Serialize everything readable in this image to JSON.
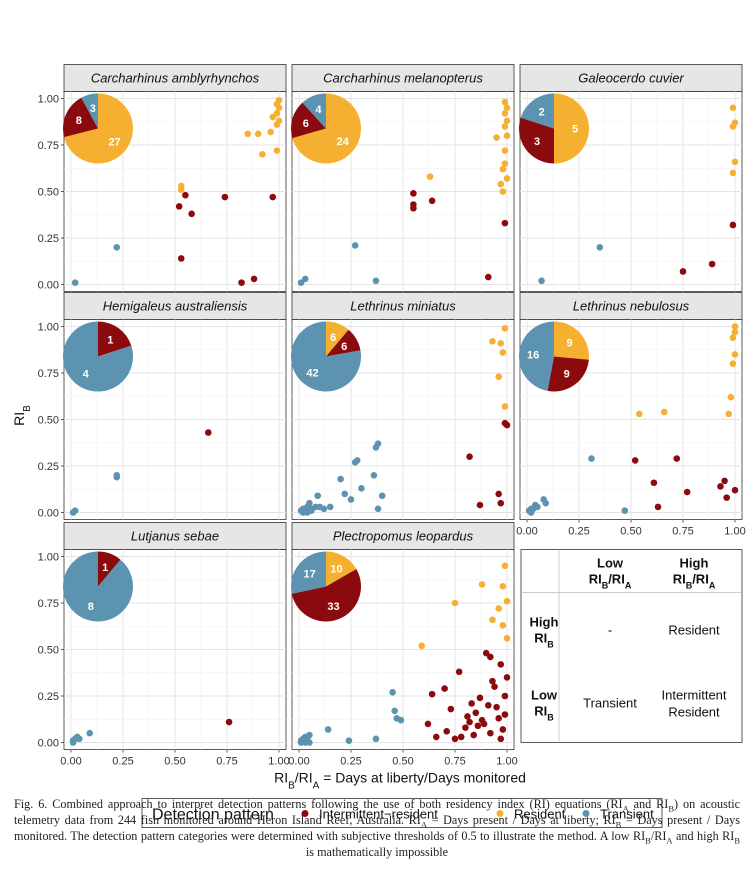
{
  "chart_data": {
    "type": "scatter",
    "layout": "facet-grid",
    "ylabel": "RI_B",
    "xlabel": "RI_B/RI_A = Days at liberty/Days monitored",
    "xlim": [
      0,
      1
    ],
    "ylim": [
      0,
      1
    ],
    "x_ticks": [
      "0.00",
      "0.25",
      "0.50",
      "0.75",
      "1.00"
    ],
    "y_ticks": [
      "0.00",
      "0.25",
      "0.50",
      "0.75",
      "1.00"
    ],
    "legend": {
      "title": "Detection pattern",
      "position": "bottom",
      "entries": [
        {
          "key": "intermittent",
          "label": "Intermittent−resident",
          "color": "#8b0a0e"
        },
        {
          "key": "resident",
          "label": "Resident",
          "color": "#f5b031"
        },
        {
          "key": "transient",
          "label": "Transient",
          "color": "#5b93b0"
        }
      ]
    },
    "panels": [
      {
        "species": "Carcharhinus amblyrhynchos",
        "pie": [
          {
            "key": "resident",
            "count": "27"
          },
          {
            "key": "intermittent",
            "count": "8"
          },
          {
            "key": "transient",
            "count": "3"
          }
        ],
        "points": {
          "resident": [
            [
              0.53,
              0.53
            ],
            [
              0.53,
              0.51
            ],
            [
              0.9,
              0.81
            ],
            [
              0.96,
              0.82
            ],
            [
              0.99,
              0.72
            ],
            [
              0.92,
              0.7
            ],
            [
              0.97,
              0.9
            ],
            [
              1.0,
              0.88
            ],
            [
              0.99,
              0.92
            ],
            [
              1.0,
              0.95
            ],
            [
              0.99,
              0.97
            ],
            [
              1.0,
              0.99
            ],
            [
              0.99,
              0.86
            ],
            [
              0.85,
              0.81
            ]
          ],
          "intermittent": [
            [
              0.52,
              0.42
            ],
            [
              0.55,
              0.48
            ],
            [
              0.58,
              0.38
            ],
            [
              0.74,
              0.47
            ],
            [
              0.97,
              0.47
            ],
            [
              0.53,
              0.14
            ],
            [
              0.82,
              0.01
            ],
            [
              0.88,
              0.03
            ]
          ],
          "transient": [
            [
              0.22,
              0.2
            ],
            [
              0.02,
              0.01
            ]
          ]
        }
      },
      {
        "species": "Carcharhinus melanopterus",
        "pie": [
          {
            "key": "resident",
            "count": "24"
          },
          {
            "key": "intermittent",
            "count": "6"
          },
          {
            "key": "transient",
            "count": "4"
          }
        ],
        "points": {
          "resident": [
            [
              0.63,
              0.58
            ],
            [
              0.95,
              0.79
            ],
            [
              0.98,
              0.62
            ],
            [
              0.99,
              0.65
            ],
            [
              0.97,
              0.54
            ],
            [
              1.0,
              0.57
            ],
            [
              0.99,
              0.72
            ],
            [
              0.99,
              0.85
            ],
            [
              1.0,
              0.88
            ],
            [
              0.99,
              0.92
            ],
            [
              1.0,
              0.95
            ],
            [
              0.99,
              0.98
            ],
            [
              1.0,
              0.8
            ],
            [
              0.98,
              0.5
            ]
          ],
          "intermittent": [
            [
              0.55,
              0.49
            ],
            [
              0.55,
              0.43
            ],
            [
              0.55,
              0.41
            ],
            [
              0.64,
              0.45
            ],
            [
              0.99,
              0.33
            ],
            [
              0.91,
              0.04
            ]
          ],
          "transient": [
            [
              0.27,
              0.21
            ],
            [
              0.03,
              0.03
            ],
            [
              0.01,
              0.01
            ],
            [
              0.37,
              0.02
            ]
          ]
        }
      },
      {
        "species": "Galeocerdo cuvier",
        "pie": [
          {
            "key": "resident",
            "count": "5"
          },
          {
            "key": "intermittent",
            "count": "3"
          },
          {
            "key": "transient",
            "count": "2"
          }
        ],
        "points": {
          "resident": [
            [
              0.99,
              0.95
            ],
            [
              1.0,
              0.87
            ],
            [
              0.99,
              0.85
            ],
            [
              0.99,
              0.6
            ],
            [
              1.0,
              0.66
            ]
          ],
          "intermittent": [
            [
              0.99,
              0.32
            ],
            [
              0.89,
              0.11
            ],
            [
              0.75,
              0.07
            ]
          ],
          "transient": [
            [
              0.35,
              0.2
            ],
            [
              0.07,
              0.02
            ]
          ]
        }
      },
      {
        "species": "Hemigaleus australiensis",
        "pie": [
          {
            "key": "intermittent",
            "count": "1"
          },
          {
            "key": "transient",
            "count": "4"
          }
        ],
        "points": {
          "intermittent": [
            [
              0.66,
              0.43
            ]
          ],
          "transient": [
            [
              0.22,
              0.2
            ],
            [
              0.22,
              0.19
            ],
            [
              0.02,
              0.01
            ],
            [
              0.01,
              0.0
            ]
          ]
        }
      },
      {
        "species": "Lethrinus miniatus",
        "pie": [
          {
            "key": "resident",
            "count": "6"
          },
          {
            "key": "intermittent",
            "count": "6"
          },
          {
            "key": "transient",
            "count": "42"
          }
        ],
        "points": {
          "resident": [
            [
              0.93,
              0.92
            ],
            [
              0.97,
              0.91
            ],
            [
              0.99,
              0.99
            ],
            [
              0.96,
              0.73
            ],
            [
              0.99,
              0.57
            ],
            [
              0.98,
              0.86
            ]
          ],
          "intermittent": [
            [
              0.82,
              0.3
            ],
            [
              0.87,
              0.04
            ],
            [
              0.96,
              0.1
            ],
            [
              0.97,
              0.05
            ],
            [
              0.99,
              0.48
            ],
            [
              1.0,
              0.47
            ]
          ],
          "transient": [
            [
              0.01,
              0.01
            ],
            [
              0.02,
              0.02
            ],
            [
              0.03,
              0.01
            ],
            [
              0.04,
              0.03
            ],
            [
              0.05,
              0.05
            ],
            [
              0.06,
              0.02
            ],
            [
              0.08,
              0.03
            ],
            [
              0.09,
              0.09
            ],
            [
              0.1,
              0.03
            ],
            [
              0.12,
              0.02
            ],
            [
              0.2,
              0.18
            ],
            [
              0.22,
              0.1
            ],
            [
              0.25,
              0.07
            ],
            [
              0.27,
              0.27
            ],
            [
              0.28,
              0.28
            ],
            [
              0.36,
              0.2
            ],
            [
              0.37,
              0.35
            ],
            [
              0.38,
              0.37
            ],
            [
              0.38,
              0.02
            ],
            [
              0.4,
              0.09
            ],
            [
              0.3,
              0.13
            ],
            [
              0.02,
              0.0
            ],
            [
              0.04,
              0.0
            ],
            [
              0.06,
              0.01
            ],
            [
              0.15,
              0.03
            ]
          ]
        }
      },
      {
        "species": "Lethrinus nebulosus",
        "pie": [
          {
            "key": "resident",
            "count": "9"
          },
          {
            "key": "intermittent",
            "count": "9"
          },
          {
            "key": "transient",
            "count": "16"
          }
        ],
        "points": {
          "resident": [
            [
              0.54,
              0.53
            ],
            [
              0.66,
              0.54
            ],
            [
              0.97,
              0.53
            ],
            [
              0.98,
              0.62
            ],
            [
              0.99,
              0.8
            ],
            [
              1.0,
              0.85
            ],
            [
              0.99,
              0.94
            ],
            [
              1.0,
              0.97
            ],
            [
              1.0,
              1.0
            ]
          ],
          "intermittent": [
            [
              0.52,
              0.28
            ],
            [
              0.61,
              0.16
            ],
            [
              0.63,
              0.03
            ],
            [
              0.72,
              0.29
            ],
            [
              0.77,
              0.11
            ],
            [
              0.93,
              0.14
            ],
            [
              0.95,
              0.17
            ],
            [
              0.96,
              0.08
            ],
            [
              1.0,
              0.12
            ]
          ],
          "transient": [
            [
              0.01,
              0.01
            ],
            [
              0.02,
              0.02
            ],
            [
              0.03,
              0.02
            ],
            [
              0.04,
              0.04
            ],
            [
              0.05,
              0.03
            ],
            [
              0.08,
              0.07
            ],
            [
              0.31,
              0.29
            ],
            [
              0.47,
              0.01
            ],
            [
              0.02,
              0.0
            ],
            [
              0.09,
              0.05
            ]
          ]
        }
      },
      {
        "species": "Lutjanus sebae",
        "pie": [
          {
            "key": "intermittent",
            "count": "1"
          },
          {
            "key": "transient",
            "count": "8"
          }
        ],
        "points": {
          "intermittent": [
            [
              0.76,
              0.11
            ]
          ],
          "transient": [
            [
              0.01,
              0.01
            ],
            [
              0.02,
              0.02
            ],
            [
              0.04,
              0.02
            ],
            [
              0.03,
              0.03
            ],
            [
              0.09,
              0.05
            ],
            [
              0.01,
              0.0
            ]
          ]
        }
      },
      {
        "species": "Plectropomus leopardus",
        "pie": [
          {
            "key": "resident",
            "count": "10"
          },
          {
            "key": "intermittent",
            "count": "33"
          },
          {
            "key": "transient",
            "count": "17"
          }
        ],
        "points": {
          "resident": [
            [
              0.59,
              0.52
            ],
            [
              0.75,
              0.75
            ],
            [
              0.88,
              0.85
            ],
            [
              0.93,
              0.66
            ],
            [
              0.96,
              0.72
            ],
            [
              0.98,
              0.84
            ],
            [
              0.99,
              0.95
            ],
            [
              1.0,
              0.76
            ],
            [
              0.98,
              0.63
            ],
            [
              1.0,
              0.56
            ]
          ],
          "intermittent": [
            [
              0.62,
              0.1
            ],
            [
              0.64,
              0.26
            ],
            [
              0.66,
              0.03
            ],
            [
              0.7,
              0.29
            ],
            [
              0.71,
              0.06
            ],
            [
              0.73,
              0.18
            ],
            [
              0.75,
              0.02
            ],
            [
              0.77,
              0.38
            ],
            [
              0.78,
              0.03
            ],
            [
              0.8,
              0.08
            ],
            [
              0.81,
              0.14
            ],
            [
              0.82,
              0.11
            ],
            [
              0.83,
              0.21
            ],
            [
              0.85,
              0.16
            ],
            [
              0.86,
              0.09
            ],
            [
              0.87,
              0.24
            ],
            [
              0.88,
              0.12
            ],
            [
              0.89,
              0.1
            ],
            [
              0.9,
              0.48
            ],
            [
              0.91,
              0.2
            ],
            [
              0.92,
              0.05
            ],
            [
              0.93,
              0.33
            ],
            [
              0.94,
              0.3
            ],
            [
              0.95,
              0.19
            ],
            [
              0.96,
              0.13
            ],
            [
              0.97,
              0.42
            ],
            [
              0.98,
              0.07
            ],
            [
              0.99,
              0.25
            ],
            [
              1.0,
              0.35
            ],
            [
              0.97,
              0.02
            ],
            [
              0.92,
              0.46
            ],
            [
              0.84,
              0.04
            ],
            [
              0.99,
              0.15
            ]
          ],
          "transient": [
            [
              0.01,
              0.0
            ],
            [
              0.02,
              0.02
            ],
            [
              0.03,
              0.03
            ],
            [
              0.04,
              0.01
            ],
            [
              0.05,
              0.04
            ],
            [
              0.03,
              0.0
            ],
            [
              0.14,
              0.07
            ],
            [
              0.24,
              0.01
            ],
            [
              0.37,
              0.02
            ],
            [
              0.45,
              0.27
            ],
            [
              0.46,
              0.17
            ],
            [
              0.47,
              0.13
            ],
            [
              0.49,
              0.12
            ],
            [
              0.02,
              0.01
            ],
            [
              0.04,
              0.02
            ],
            [
              0.01,
              0.01
            ],
            [
              0.05,
              0.0
            ]
          ]
        }
      }
    ],
    "lookup_table": {
      "col_headers": [
        {
          "line1": "Low",
          "line2": "RI",
          "sub": "B",
          "tail": "/RI",
          "sub2": "A"
        },
        {
          "line1": "High",
          "line2": "RI",
          "sub": "B",
          "tail": "/RI",
          "sub2": "A"
        }
      ],
      "rows": [
        {
          "label1": "High",
          "label2": "RI",
          "sub": "B",
          "cells": [
            "-",
            "Resident"
          ]
        },
        {
          "label1": "Low",
          "label2": "RI",
          "sub": "B",
          "cells": [
            "Transient",
            "Intermittent\nResident"
          ]
        }
      ]
    }
  },
  "caption": {
    "p1": "Fig. 6. Combined approach to interpret detection patterns following the use of both residency index (RI) equations (RI",
    "p1_sub_a": "A",
    "p1_and": " and RI",
    "p1_sub_b": "B",
    "p2": ") on acoustic telemetry data from 244 fish monitored around Heron Island Reef, Australia. RI",
    "p2_sub": "A",
    "p3": " = Days present / Days at liberty; RI",
    "p3_sub": "B",
    "p4": " = Days present / Days monitored. The detection pattern categories were determined with subjective thresholds of 0.5 to illustrate the method. A low RI",
    "p4_sub_b": "B",
    "p5": "/RI",
    "p5_sub_a": "A",
    "p6": " and high RI",
    "p6_sub_b": "B",
    "p7": " is mathematically impossible"
  }
}
